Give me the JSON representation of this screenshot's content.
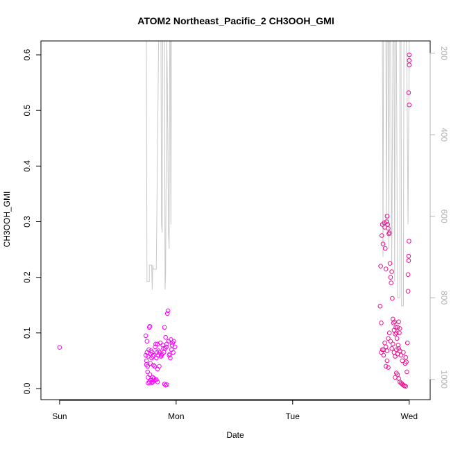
{
  "chart_data": {
    "type": "scatter",
    "title": "ATOM2 Northeast_Pacific_2 CH3OOH_GMI",
    "xlabel": "Date",
    "ylabel": "CH3OOH_GMI",
    "x_ticks": [
      {
        "label": "Sun",
        "value": 0
      },
      {
        "label": "Mon",
        "value": 1
      },
      {
        "label": "Tue",
        "value": 2
      },
      {
        "label": "Wed",
        "value": 3
      }
    ],
    "xlim": [
      -0.16,
      3.18
    ],
    "ylim": [
      -0.02,
      0.625
    ],
    "y_ticks": [
      0.0,
      0.1,
      0.2,
      0.3,
      0.4,
      0.5,
      0.6
    ],
    "y_tick_labels": [
      "0.0",
      "0.1",
      "0.2",
      "0.3",
      "0.4",
      "0.5",
      "0.6"
    ],
    "secondary_axis": {
      "side": "right",
      "reversed": true,
      "ylim": [
        1050,
        170
      ],
      "ticks": [
        200,
        400,
        600,
        800,
        1000
      ],
      "tick_labels": [
        "200",
        "400",
        "600",
        "800",
        "1000"
      ],
      "color": "#b3b3b3"
    },
    "grid": false,
    "colors": {
      "points_early": "#ff00ff",
      "points_late": "#ee1090",
      "line": "#c8c8c8"
    },
    "series": [
      {
        "kind": "points",
        "color": "#ff00ff",
        "points": [
          [
            0.0,
            0.074
          ],
          [
            0.74,
            0.06
          ],
          [
            0.74,
            0.095
          ],
          [
            0.745,
            0.05
          ],
          [
            0.745,
            0.043
          ],
          [
            0.75,
            0.065
          ],
          [
            0.75,
            0.085
          ],
          [
            0.755,
            0.04
          ],
          [
            0.755,
            0.03
          ],
          [
            0.76,
            0.058
          ],
          [
            0.76,
            0.02
          ],
          [
            0.765,
            0.07
          ],
          [
            0.77,
            0.11
          ],
          [
            0.775,
            0.112
          ],
          [
            0.775,
            0.025
          ],
          [
            0.78,
            0.062
          ],
          [
            0.78,
            0.045
          ],
          [
            0.785,
            0.068
          ],
          [
            0.79,
            0.055
          ],
          [
            0.79,
            0.015
          ],
          [
            0.795,
            0.065
          ],
          [
            0.8,
            0.058
          ],
          [
            0.8,
            0.02
          ],
          [
            0.805,
            0.042
          ],
          [
            0.81,
            0.06
          ],
          [
            0.81,
            0.018
          ],
          [
            0.815,
            0.04
          ],
          [
            0.82,
            0.075
          ],
          [
            0.825,
            0.08
          ],
          [
            0.83,
            0.055
          ],
          [
            0.835,
            0.065
          ],
          [
            0.84,
            0.035
          ],
          [
            0.84,
            0.08
          ],
          [
            0.845,
            0.06
          ],
          [
            0.85,
            0.068
          ],
          [
            0.855,
            0.04
          ],
          [
            0.86,
            0.065
          ],
          [
            0.865,
            0.082
          ],
          [
            0.87,
            0.058
          ],
          [
            0.875,
            0.06
          ],
          [
            0.88,
            0.062
          ],
          [
            0.885,
            0.078
          ],
          [
            0.89,
            0.072
          ],
          [
            0.895,
            0.065
          ],
          [
            0.9,
            0.11
          ],
          [
            0.905,
            0.072
          ],
          [
            0.91,
            0.092
          ],
          [
            0.915,
            0.075
          ],
          [
            0.92,
            0.08
          ],
          [
            0.925,
            0.135
          ],
          [
            0.93,
            0.14
          ],
          [
            0.935,
            0.085
          ],
          [
            0.94,
            0.06
          ],
          [
            0.945,
            0.062
          ],
          [
            0.95,
            0.055
          ],
          [
            0.955,
            0.088
          ],
          [
            0.96,
            0.07
          ],
          [
            0.965,
            0.078
          ],
          [
            0.97,
            0.082
          ],
          [
            0.975,
            0.065
          ],
          [
            0.98,
            0.085
          ],
          [
            0.99,
            0.075
          ],
          [
            0.76,
            0.01
          ],
          [
            0.77,
            0.012
          ],
          [
            0.78,
            0.015
          ],
          [
            0.79,
            0.01
          ],
          [
            0.8,
            0.012
          ],
          [
            0.81,
            0.018
          ],
          [
            0.82,
            0.015
          ],
          [
            0.83,
            0.016
          ],
          [
            0.84,
            0.012
          ],
          [
            0.9,
            0.008
          ],
          [
            0.91,
            0.006
          ],
          [
            0.92,
            0.007
          ]
        ]
      },
      {
        "kind": "points",
        "color": "#ee1090",
        "points": [
          [
            2.75,
            0.148
          ],
          [
            2.755,
            0.22
          ],
          [
            2.76,
            0.118
          ],
          [
            2.765,
            0.275
          ],
          [
            2.77,
            0.295
          ],
          [
            2.775,
            0.26
          ],
          [
            2.78,
            0.07
          ],
          [
            2.785,
            0.298
          ],
          [
            2.79,
            0.29
          ],
          [
            2.795,
            0.252
          ],
          [
            2.8,
            0.215
          ],
          [
            2.805,
            0.3
          ],
          [
            2.81,
            0.31
          ],
          [
            2.815,
            0.295
          ],
          [
            2.82,
            0.288
          ],
          [
            2.825,
            0.278
          ],
          [
            2.83,
            0.28
          ],
          [
            2.835,
            0.225
          ],
          [
            2.84,
            0.2
          ],
          [
            2.845,
            0.19
          ],
          [
            2.85,
            0.21
          ],
          [
            2.855,
            0.162
          ],
          [
            2.86,
            0.125
          ],
          [
            2.865,
            0.118
          ],
          [
            2.87,
            0.105
          ],
          [
            2.875,
            0.12
          ],
          [
            2.88,
            0.098
          ],
          [
            2.885,
            0.11
          ],
          [
            2.89,
            0.1
          ],
          [
            2.895,
            0.09
          ],
          [
            2.9,
            0.11
          ],
          [
            2.905,
            0.078
          ],
          [
            2.91,
            0.12
          ],
          [
            2.915,
            0.1
          ],
          [
            2.92,
            0.108
          ],
          [
            2.76,
            0.065
          ],
          [
            2.77,
            0.07
          ],
          [
            2.78,
            0.06
          ],
          [
            2.79,
            0.082
          ],
          [
            2.8,
            0.075
          ],
          [
            2.81,
            0.068
          ],
          [
            2.82,
            0.09
          ],
          [
            2.83,
            0.1
          ],
          [
            2.84,
            0.085
          ],
          [
            2.85,
            0.072
          ],
          [
            2.86,
            0.08
          ],
          [
            2.87,
            0.065
          ],
          [
            2.88,
            0.058
          ],
          [
            2.89,
            0.07
          ],
          [
            2.9,
            0.062
          ],
          [
            2.91,
            0.072
          ],
          [
            2.92,
            0.068
          ],
          [
            2.93,
            0.06
          ],
          [
            2.94,
            0.05
          ],
          [
            2.95,
            0.065
          ],
          [
            2.8,
            0.04
          ],
          [
            2.81,
            0.05
          ],
          [
            2.82,
            0.038
          ],
          [
            2.88,
            0.02
          ],
          [
            2.89,
            0.028
          ],
          [
            2.9,
            0.025
          ],
          [
            2.91,
            0.018
          ],
          [
            2.92,
            0.012
          ],
          [
            2.93,
            0.01
          ],
          [
            2.94,
            0.008
          ],
          [
            2.95,
            0.006
          ],
          [
            2.96,
            0.005
          ],
          [
            2.97,
            0.004
          ],
          [
            2.965,
            0.045
          ],
          [
            2.97,
            0.056
          ],
          [
            2.975,
            0.048
          ],
          [
            2.98,
            0.03
          ],
          [
            2.985,
            0.082
          ],
          [
            2.99,
            0.175
          ],
          [
            2.99,
            0.205
          ],
          [
            2.995,
            0.23
          ],
          [
            2.995,
            0.238
          ],
          [
            2.998,
            0.265
          ],
          [
            2.995,
            0.532
          ],
          [
            3.0,
            0.51
          ],
          [
            3.0,
            0.59
          ],
          [
            3.0,
            0.6
          ],
          [
            3.0,
            0.582
          ]
        ]
      },
      {
        "kind": "line",
        "color": "#c8c8c8",
        "axis": "secondary",
        "points": [
          [
            0.745,
            170
          ],
          [
            0.75,
            760
          ],
          [
            0.77,
            760
          ],
          [
            0.77,
            720
          ],
          [
            0.79,
            720
          ],
          [
            0.795,
            780
          ],
          [
            0.8,
            720
          ],
          [
            0.805,
            730
          ],
          [
            0.83,
            730
          ],
          [
            0.83,
            720
          ],
          [
            0.85,
            170
          ],
          [
            0.87,
            170
          ],
          [
            0.875,
            620
          ],
          [
            0.88,
            640
          ],
          [
            0.885,
            170
          ],
          [
            0.9,
            170
          ],
          [
            0.905,
            780
          ],
          [
            0.91,
            740
          ],
          [
            0.92,
            170
          ],
          [
            0.925,
            270
          ],
          [
            0.935,
            640
          ],
          [
            0.94,
            680
          ],
          [
            0.945,
            170
          ],
          [
            0.95,
            170
          ],
          [
            0.955,
            620
          ],
          [
            0.96,
            170
          ],
          [
            2.73,
            170
          ],
          [
            2.77,
            170
          ],
          [
            2.775,
            700
          ],
          [
            2.78,
            170
          ],
          [
            2.8,
            170
          ],
          [
            2.805,
            620
          ],
          [
            2.81,
            170
          ],
          [
            2.82,
            170
          ],
          [
            2.825,
            680
          ],
          [
            2.83,
            170
          ],
          [
            2.84,
            170
          ],
          [
            2.85,
            720
          ],
          [
            2.86,
            170
          ],
          [
            2.87,
            170
          ],
          [
            2.875,
            760
          ],
          [
            2.88,
            170
          ],
          [
            2.89,
            170
          ],
          [
            2.9,
            800
          ],
          [
            2.92,
            800
          ],
          [
            2.92,
            170
          ],
          [
            2.93,
            170
          ],
          [
            2.935,
            820
          ],
          [
            2.95,
            820
          ],
          [
            2.955,
            170
          ],
          [
            2.975,
            170
          ],
          [
            2.98,
            240
          ],
          [
            2.99,
            620
          ],
          [
            3.0,
            170
          ]
        ]
      }
    ]
  }
}
